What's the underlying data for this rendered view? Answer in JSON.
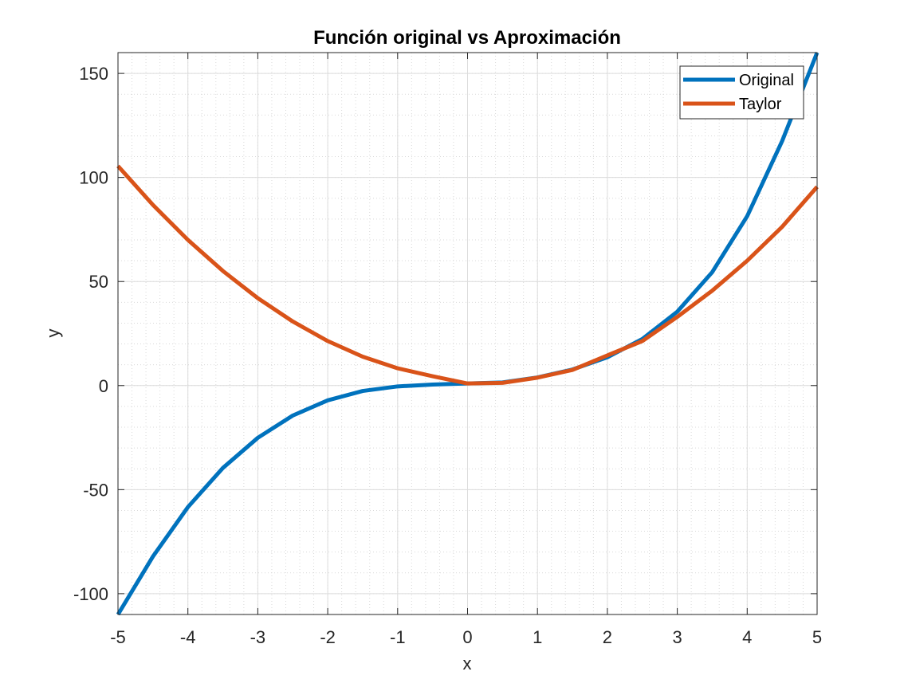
{
  "chart_data": {
    "type": "line",
    "title": "Función original vs Aproximación",
    "xlabel": "x",
    "ylabel": "y",
    "xlim": [
      -5,
      5
    ],
    "ylim": [
      -110,
      160
    ],
    "x_ticks": [
      -5,
      -4,
      -3,
      -2,
      -1,
      0,
      1,
      2,
      3,
      4,
      5
    ],
    "y_ticks": [
      -100,
      -50,
      0,
      50,
      100,
      150
    ],
    "grid": true,
    "minor_grid": true,
    "legend_position": "top-right",
    "x": [
      -5,
      -4.5,
      -4,
      -3.5,
      -3,
      -2.5,
      -2,
      -1.5,
      -1,
      -0.5,
      0,
      0.5,
      1,
      1.5,
      2,
      2.5,
      3,
      3.5,
      4,
      4.5,
      5
    ],
    "series": [
      {
        "name": "Original",
        "color": "#0072BD",
        "values": [
          -110,
          -82.1,
          -58.4,
          -39.6,
          -25.1,
          -14.4,
          -7.1,
          -2.6,
          -0.4,
          0.5,
          1.0,
          1.5,
          3.9,
          7.7,
          13.6,
          22.4,
          35.5,
          54.5,
          81.4,
          117.5,
          160.0
        ]
      },
      {
        "name": "Taylor",
        "color": "#D95319",
        "values": [
          105.5,
          86.8,
          70.0,
          55.1,
          42.0,
          30.8,
          21.4,
          13.9,
          8.3,
          4.5,
          1.0,
          1.3,
          3.8,
          7.5,
          14.5,
          21.4,
          33.0,
          45.6,
          60.0,
          76.3,
          95.5
        ]
      }
    ]
  }
}
